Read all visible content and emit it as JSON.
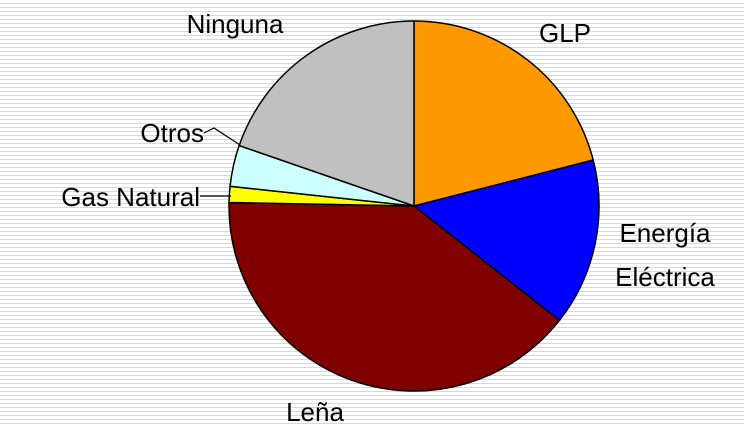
{
  "chart_data": {
    "type": "pie",
    "categories": [
      "GLP",
      "Energía Eléctrica",
      "Leña",
      "Gas Natural",
      "Otros",
      "Ninguna"
    ],
    "values": [
      21,
      14.6,
      39.7,
      1.4,
      3.6,
      19.7
    ],
    "colors": [
      "#FF9900",
      "#0000FF",
      "#800000",
      "#FFFF00",
      "#CCFFFF",
      "#C0C0C0"
    ]
  }
}
